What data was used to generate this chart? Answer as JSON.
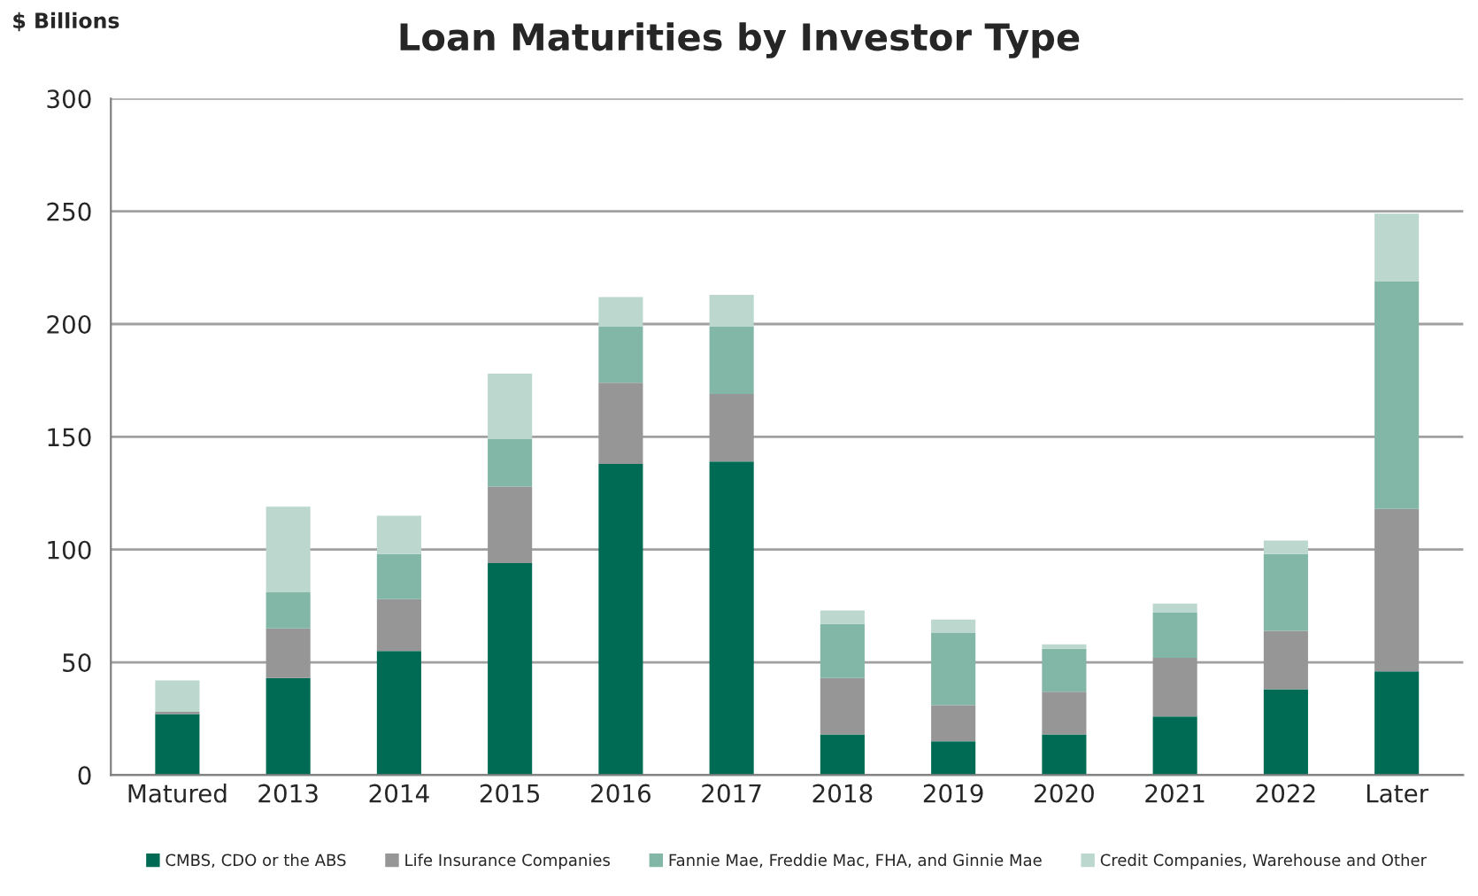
{
  "chart_data": {
    "type": "bar",
    "title": "Loan Maturities by Investor Type",
    "ylabel": "$ Billions",
    "stacked": true,
    "categories": [
      "Matured",
      "2013",
      "2014",
      "2015",
      "2016",
      "2017",
      "2018",
      "2019",
      "2020",
      "2021",
      "2022",
      "Later"
    ],
    "series": [
      {
        "name": "CMBS, CDO or the ABS",
        "color": "#006b54",
        "values": [
          27,
          43,
          55,
          94,
          138,
          139,
          18,
          15,
          18,
          26,
          38,
          46
        ]
      },
      {
        "name": "Life Insurance Companies",
        "color": "#969696",
        "values": [
          1,
          22,
          23,
          34,
          36,
          30,
          25,
          16,
          19,
          26,
          26,
          72
        ]
      },
      {
        "name": "Fannie Mae, Freddie Mac, FHA, and Ginnie Mae",
        "color": "#82b6a6",
        "values": [
          0,
          16,
          20,
          21,
          25,
          30,
          24,
          32,
          19,
          20,
          34,
          101
        ]
      },
      {
        "name": "Credit Companies, Warehouse and Other",
        "color": "#bcd8ce",
        "values": [
          14,
          38,
          17,
          29,
          13,
          14,
          6,
          6,
          2,
          4,
          6,
          30
        ]
      }
    ],
    "ylim": [
      0,
      300
    ],
    "yticks": [
      0,
      50,
      100,
      150,
      200,
      250,
      300
    ],
    "grid": "y",
    "legend": "bottom"
  }
}
